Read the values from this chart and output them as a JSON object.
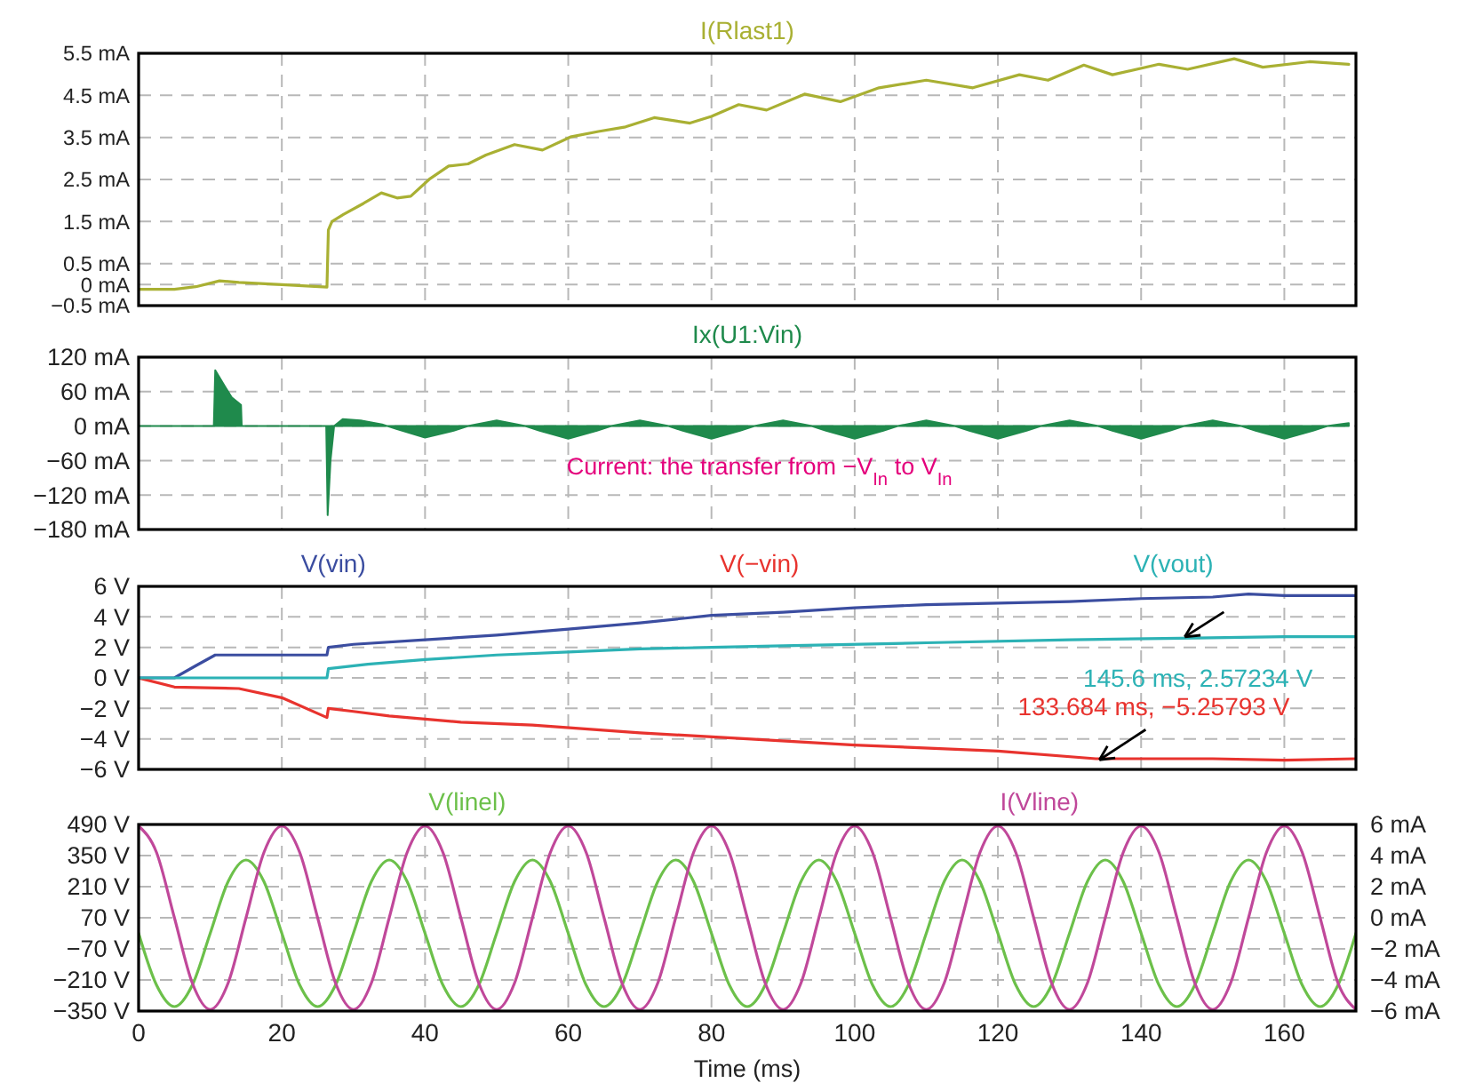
{
  "chart_data": [
    {
      "type": "line",
      "legend": "top",
      "grid": true,
      "tick_labels": "y",
      "xlim": [
        0,
        170
      ],
      "xticks": [
        0,
        20,
        40,
        60,
        80,
        100,
        120,
        140,
        160
      ],
      "ylim": [
        -0.5,
        5.5
      ],
      "yticks": [
        {
          "value": 5.5,
          "label": "5.5 mA"
        },
        {
          "value": 4.5,
          "label": "4.5 mA"
        },
        {
          "value": 3.5,
          "label": "3.5 mA"
        },
        {
          "value": 2.5,
          "label": "2.5 mA"
        },
        {
          "value": 1.5,
          "label": "1.5 mA"
        },
        {
          "value": 0.5,
          "label": "0.5 mA"
        },
        {
          "value": 0,
          "label": "0 mA"
        },
        {
          "value": -0.5,
          "label": "−0.5 mA"
        }
      ],
      "series": [
        {
          "name": "I(Rlast1)",
          "color": "#a9b033",
          "x": [
            0,
            5,
            8,
            11.3,
            14,
            20,
            26.3,
            26.5,
            27,
            28.6,
            31.4,
            33.9,
            36.1,
            38,
            40.7,
            43.3,
            46,
            48.5,
            52.5,
            56.4,
            60.3,
            64.2,
            68,
            72,
            77,
            80,
            83.8,
            87.7,
            93,
            98,
            103.4,
            110,
            116.5,
            123,
            127,
            132,
            136,
            142.5,
            146.5,
            153,
            157,
            163.5,
            169
          ],
          "values": [
            -0.11,
            -0.11,
            -0.05,
            0.09,
            0.05,
            0.0,
            -0.06,
            1.3,
            1.5,
            1.67,
            1.93,
            2.18,
            2.06,
            2.1,
            2.52,
            2.82,
            2.87,
            3.08,
            3.33,
            3.2,
            3.51,
            3.64,
            3.75,
            3.97,
            3.84,
            4.0,
            4.28,
            4.15,
            4.53,
            4.35,
            4.68,
            4.86,
            4.68,
            4.99,
            4.86,
            5.22,
            4.99,
            5.24,
            5.12,
            5.37,
            5.17,
            5.3,
            5.24
          ]
        }
      ]
    },
    {
      "type": "area",
      "legend": "top",
      "grid": true,
      "tick_labels": "y",
      "xlim": [
        0,
        170
      ],
      "xticks": [
        0,
        20,
        40,
        60,
        80,
        100,
        120,
        140,
        160
      ],
      "ylim": [
        -180,
        120
      ],
      "yticks": [
        {
          "value": 120,
          "label": "120 mA"
        },
        {
          "value": 60,
          "label": "60 mA"
        },
        {
          "value": 0,
          "label": "0 mA"
        },
        {
          "value": -60,
          "label": "−60 mA"
        },
        {
          "value": -120,
          "label": "−120 mA"
        },
        {
          "value": -180,
          "label": "−180 mA"
        }
      ],
      "annotations": [
        "Current: the transfer from −V$_{In}$ to V$_{In}$"
      ],
      "series": [
        {
          "name": "Ix(U1:Vin)",
          "color": "#1f8a4c",
          "x": [
            0,
            10.5,
            10.7,
            12,
            13,
            14.3,
            14.4,
            26.2,
            26.4,
            26.8,
            27.3,
            28.5,
            31,
            34,
            36,
            40,
            44,
            46,
            50,
            54,
            56,
            60,
            64,
            66,
            70,
            74,
            76,
            80,
            84,
            86,
            90,
            94,
            96,
            100,
            104,
            106,
            110,
            114,
            116,
            120,
            124,
            126,
            130,
            134,
            136,
            140,
            144,
            146,
            150,
            154,
            156,
            160,
            164,
            166,
            169
          ],
          "values": [
            0,
            0,
            97,
            70,
            50,
            37,
            0,
            0,
            -155,
            -60,
            0,
            12,
            10,
            3,
            -5,
            -20,
            -8,
            0,
            10,
            0,
            -8,
            -22,
            -8,
            0,
            10,
            0,
            -8,
            -22,
            -8,
            0,
            10,
            0,
            -8,
            -22,
            -8,
            0,
            10,
            0,
            -8,
            -22,
            -8,
            0,
            10,
            0,
            -8,
            -22,
            -8,
            0,
            10,
            0,
            -8,
            -22,
            -8,
            0,
            5
          ]
        }
      ]
    },
    {
      "type": "line",
      "legend": "top",
      "grid": true,
      "tick_labels": "y",
      "xlim": [
        0,
        170
      ],
      "xticks": [
        0,
        20,
        40,
        60,
        80,
        100,
        120,
        140,
        160
      ],
      "ylim": [
        -6,
        6
      ],
      "yticks": [
        {
          "value": 6,
          "label": "6 V"
        },
        {
          "value": 4,
          "label": "4 V"
        },
        {
          "value": 2,
          "label": "2 V"
        },
        {
          "value": 0,
          "label": "0 V"
        },
        {
          "value": -2,
          "label": "−2 V"
        },
        {
          "value": -4,
          "label": "−4 V"
        },
        {
          "value": -6,
          "label": "−6 V"
        }
      ],
      "annotations": [
        {
          "text": "145.6 ms, 2.57234 V",
          "x": 145.6,
          "y": 2.57234
        },
        {
          "text": "133.684 ms, −5.25793 V",
          "x": 133.684,
          "y": -5.25793
        }
      ],
      "series": [
        {
          "name": "V(vin)",
          "color": "#3b4da0",
          "x": [
            0,
            5,
            8,
            10.7,
            26.3,
            26.5,
            30,
            40,
            50,
            60,
            70,
            80,
            90,
            100,
            110,
            120,
            130,
            140,
            150,
            155,
            160,
            170
          ],
          "values": [
            0,
            0,
            0.8,
            1.5,
            1.5,
            2.0,
            2.2,
            2.5,
            2.8,
            3.2,
            3.6,
            4.1,
            4.3,
            4.6,
            4.8,
            4.9,
            5.0,
            5.2,
            5.3,
            5.5,
            5.4,
            5.4
          ]
        },
        {
          "name": "V(−vin)",
          "color": "#e8332e",
          "x": [
            0,
            5,
            14,
            20,
            26.3,
            26.5,
            30,
            35,
            45,
            55,
            70,
            85,
            100,
            120,
            133.684,
            150,
            160,
            170
          ],
          "values": [
            0,
            -0.6,
            -0.7,
            -1.3,
            -2.6,
            -2.0,
            -2.2,
            -2.5,
            -2.9,
            -3.1,
            -3.6,
            -4.0,
            -4.4,
            -4.8,
            -5.3,
            -5.3,
            -5.4,
            -5.3
          ]
        },
        {
          "name": "V(vout)",
          "color": "#2cb2b5",
          "x": [
            0,
            26.3,
            26.5,
            32,
            40,
            50,
            60,
            70,
            80,
            90,
            110,
            130,
            145.6,
            160,
            170
          ],
          "values": [
            0,
            0,
            0.6,
            0.9,
            1.2,
            1.5,
            1.7,
            1.9,
            2.0,
            2.1,
            2.3,
            2.5,
            2.6,
            2.7,
            2.7
          ]
        }
      ]
    },
    {
      "type": "line",
      "legend": "top",
      "grid": true,
      "xlabel": "Time (ms)",
      "xlim": [
        0,
        170
      ],
      "xticks": [
        0,
        20,
        40,
        60,
        80,
        100,
        120,
        140,
        160
      ],
      "ylim": [
        -350,
        490
      ],
      "yticks": [
        {
          "value": 490,
          "label": "490 V"
        },
        {
          "value": 350,
          "label": "350 V"
        },
        {
          "value": 210,
          "label": "210 V"
        },
        {
          "value": 70,
          "label": "70 V"
        },
        {
          "value": -70,
          "label": "−70 V"
        },
        {
          "value": -210,
          "label": "−210 V"
        },
        {
          "value": -350,
          "label": "−350 V"
        }
      ],
      "y2lim": [
        -6,
        6
      ],
      "y2ticks": [
        {
          "value": 6,
          "label": "6 mA"
        },
        {
          "value": 4,
          "label": "4 mA"
        },
        {
          "value": 2,
          "label": "2 mA"
        },
        {
          "value": 0,
          "label": "0 mA"
        },
        {
          "value": -2,
          "label": "−2 mA"
        },
        {
          "value": -4,
          "label": "−4 mA"
        },
        {
          "value": -6,
          "label": "−6 mA"
        }
      ],
      "series": [
        {
          "name": "V(linel)",
          "color": "#6cc04a",
          "x": [
            0,
            2.5,
            5,
            7.5,
            10,
            12.5,
            15,
            17.5,
            20,
            22.5,
            25,
            27.5,
            30,
            32.5,
            35,
            37.5,
            40,
            42.5,
            45,
            47.5,
            50,
            52.5,
            55,
            57.5,
            60,
            62.5,
            65,
            67.5,
            70,
            72.5,
            75,
            77.5,
            80,
            82.5,
            85,
            87.5,
            90,
            92.5,
            95,
            97.5,
            100,
            102.5,
            105,
            107.5,
            110,
            112.5,
            115,
            117.5,
            120,
            122.5,
            125,
            127.5,
            130,
            132.5,
            135,
            137.5,
            140,
            142.5,
            145,
            147.5,
            150,
            152.5,
            155,
            157.5,
            160,
            162.5,
            165,
            167.5,
            170
          ],
          "values": [
            0,
            -233,
            -330,
            -233,
            0,
            233,
            330,
            233,
            0,
            -233,
            -330,
            -233,
            0,
            233,
            330,
            233,
            0,
            -233,
            -330,
            -233,
            0,
            233,
            330,
            233,
            0,
            -233,
            -330,
            -233,
            0,
            233,
            330,
            233,
            0,
            -233,
            -330,
            -233,
            0,
            233,
            330,
            233,
            0,
            -233,
            -330,
            -233,
            0,
            233,
            330,
            233,
            0,
            -233,
            -330,
            -233,
            0,
            233,
            330,
            233,
            0,
            -233,
            -330,
            -233,
            0,
            233,
            330,
            233,
            0,
            -233,
            -330,
            -233,
            0
          ]
        },
        {
          "name": "I(Vline)",
          "color": "#c0489a",
          "axis": "y2",
          "x": [
            0,
            2.5,
            5,
            7.5,
            10,
            12.5,
            15,
            17.5,
            20,
            22.5,
            25,
            27.5,
            30,
            32.5,
            35,
            37.5,
            40,
            42.5,
            45,
            47.5,
            50,
            52.5,
            55,
            57.5,
            60,
            62.5,
            65,
            67.5,
            70,
            72.5,
            75,
            77.5,
            80,
            82.5,
            85,
            87.5,
            90,
            92.5,
            95,
            97.5,
            100,
            102.5,
            105,
            107.5,
            110,
            112.5,
            115,
            117.5,
            120,
            122.5,
            125,
            127.5,
            130,
            132.5,
            135,
            137.5,
            140,
            142.5,
            145,
            147.5,
            150,
            152.5,
            155,
            157.5,
            160,
            162.5,
            165,
            167.5,
            170
          ],
          "values": [
            5.9,
            4.2,
            0,
            -4.2,
            -5.9,
            -4.2,
            0,
            4.2,
            5.9,
            4.2,
            0,
            -4.2,
            -5.9,
            -4.2,
            0,
            4.2,
            5.9,
            4.2,
            0,
            -4.2,
            -5.9,
            -4.2,
            0,
            4.2,
            5.9,
            4.2,
            0,
            -4.2,
            -5.9,
            -4.2,
            0,
            4.2,
            5.9,
            4.2,
            0,
            -4.2,
            -5.9,
            -4.2,
            0,
            4.2,
            5.9,
            4.2,
            0,
            -4.2,
            -5.9,
            -4.2,
            0,
            4.2,
            5.9,
            4.2,
            0,
            -4.2,
            -5.9,
            -4.2,
            0,
            4.2,
            5.9,
            4.2,
            0,
            -4.2,
            -5.9,
            -4.2,
            0,
            4.2,
            5.9,
            4.2,
            0,
            -4.2,
            -5.9
          ]
        }
      ]
    }
  ]
}
